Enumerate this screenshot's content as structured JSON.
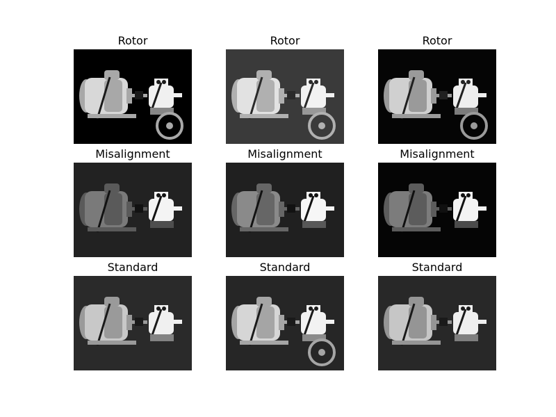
{
  "panels": [
    {
      "title": "Rotor",
      "bg": "#000000",
      "bodyL": "#d8d8d8",
      "bodyM": "#a8a8a8",
      "motorR": "#f0f0f0",
      "dark": "#1a1a1a",
      "fan": true
    },
    {
      "title": "Rotor",
      "bg": "#3a3a3a",
      "bodyL": "#e2e2e2",
      "bodyM": "#b0b0b0",
      "motorR": "#f2f2f2",
      "dark": "#2a2a2a",
      "fan": true
    },
    {
      "title": "Rotor",
      "bg": "#050505",
      "bodyL": "#d0d0d0",
      "bodyM": "#9a9a9a",
      "motorR": "#eeeeee",
      "dark": "#202020",
      "fan": true
    },
    {
      "title": "Misalignment",
      "bg": "#222222",
      "bodyL": "#7a7a7a",
      "bodyM": "#5a5a5a",
      "motorR": "#f4f4f4",
      "dark": "#121212",
      "fan": false
    },
    {
      "title": "Misalignment",
      "bg": "#202020",
      "bodyL": "#8a8a8a",
      "bodyM": "#666666",
      "motorR": "#f6f6f6",
      "dark": "#121212",
      "fan": false
    },
    {
      "title": "Misalignment",
      "bg": "#050505",
      "bodyL": "#7c7c7c",
      "bodyM": "#5c5c5c",
      "motorR": "#f3f3f3",
      "dark": "#101010",
      "fan": false
    },
    {
      "title": "Standard",
      "bg": "#2a2a2a",
      "bodyL": "#c8c8c8",
      "bodyM": "#9a9a9a",
      "motorR": "#f0f0f0",
      "dark": "#1a1a1a",
      "fan": false
    },
    {
      "title": "Standard",
      "bg": "#262626",
      "bodyL": "#d6d6d6",
      "bodyM": "#a5a5a5",
      "motorR": "#f2f2f2",
      "dark": "#1a1a1a",
      "fan": true
    },
    {
      "title": "Standard",
      "bg": "#282828",
      "bodyL": "#c6c6c6",
      "bodyM": "#959595",
      "motorR": "#efefef",
      "dark": "#1a1a1a",
      "fan": false
    }
  ]
}
